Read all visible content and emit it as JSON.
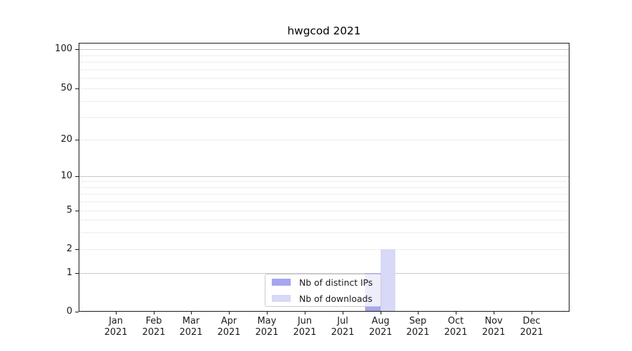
{
  "title": "hwgcod 2021",
  "colors": {
    "distinct_ips": "#a6a6ef",
    "downloads": "#d8d8f7",
    "grid_major": "#c8c8c8",
    "grid_minor": "#ececec",
    "axis": "#1a1a1a",
    "text": "#1a1a1a",
    "legend_border": "#cccccc"
  },
  "legend": {
    "items": [
      {
        "key": "distinct_ips",
        "label": "Nb of distinct IPs"
      },
      {
        "key": "downloads",
        "label": "Nb of downloads"
      }
    ]
  },
  "x_axis": {
    "ticks": [
      {
        "month": "Jan",
        "year": "2021"
      },
      {
        "month": "Feb",
        "year": "2021"
      },
      {
        "month": "Mar",
        "year": "2021"
      },
      {
        "month": "Apr",
        "year": "2021"
      },
      {
        "month": "May",
        "year": "2021"
      },
      {
        "month": "Jun",
        "year": "2021"
      },
      {
        "month": "Jul",
        "year": "2021"
      },
      {
        "month": "Aug",
        "year": "2021"
      },
      {
        "month": "Sep",
        "year": "2021"
      },
      {
        "month": "Oct",
        "year": "2021"
      },
      {
        "month": "Nov",
        "year": "2021"
      },
      {
        "month": "Dec",
        "year": "2021"
      }
    ]
  },
  "y_axis": {
    "tick_labels": [
      "0",
      "1",
      "2",
      "5",
      "10",
      "20",
      "50",
      "100"
    ]
  },
  "chart_data": {
    "type": "bar",
    "title": "hwgcod 2021",
    "categories": [
      "Jan 2021",
      "Feb 2021",
      "Mar 2021",
      "Apr 2021",
      "May 2021",
      "Jun 2021",
      "Jul 2021",
      "Aug 2021",
      "Sep 2021",
      "Oct 2021",
      "Nov 2021",
      "Dec 2021"
    ],
    "series": [
      {
        "name": "Nb of distinct IPs",
        "color": "#a6a6ef",
        "values": [
          0,
          0,
          0,
          0,
          0,
          0,
          0,
          1,
          0,
          0,
          0,
          0
        ]
      },
      {
        "name": "Nb of downloads",
        "color": "#d8d8f7",
        "values": [
          0,
          0,
          0,
          0,
          0,
          0,
          0,
          2,
          0,
          0,
          0,
          0
        ]
      }
    ],
    "xlabel": "",
    "ylabel": "",
    "yscale": "symlog",
    "ylim": [
      0,
      130
    ],
    "y_labeled_ticks": [
      0,
      1,
      2,
      5,
      10,
      20,
      50,
      100
    ],
    "y_major_gridlines": [
      1,
      10,
      100
    ],
    "y_minor_gridlines": [
      2,
      3,
      4,
      5,
      6,
      7,
      8,
      9,
      20,
      30,
      40,
      50,
      60,
      70,
      80,
      90
    ],
    "grid": true,
    "legend_position": "lower center"
  }
}
